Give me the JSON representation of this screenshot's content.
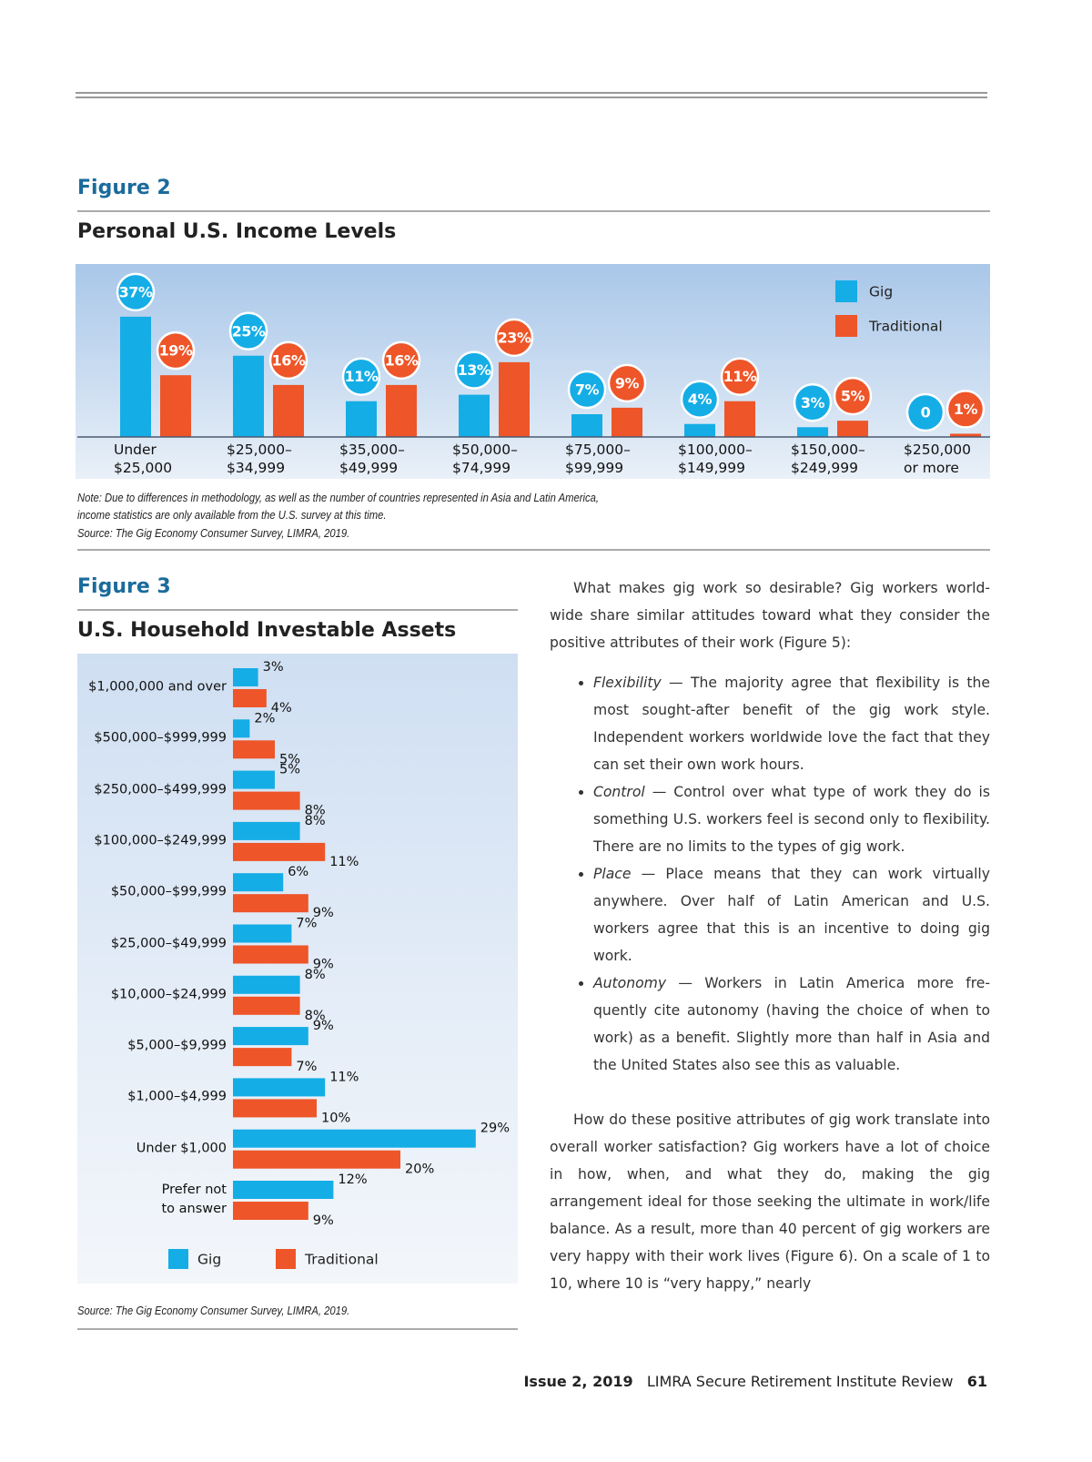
{
  "chart_data": [
    {
      "type": "bar",
      "label": "Figure 2",
      "title": "Personal U.S. Income Levels",
      "categories": [
        "Under\n$25,000",
        "$25,000–\n$34,999",
        "$35,000–\n$49,999",
        "$50,000–\n$74,999",
        "$75,000–\n$99,999",
        "$100,000–\n$149,999",
        "$150,000–\n$249,999",
        "$250,000\nor more"
      ],
      "series": [
        {
          "name": "Gig",
          "color": "#15ade6",
          "values": [
            37,
            25,
            11,
            13,
            7,
            4,
            3,
            0
          ],
          "value_labels": [
            "37%",
            "25%",
            "11%",
            "13%",
            "7%",
            "4%",
            "3%",
            "0"
          ]
        },
        {
          "name": "Traditional",
          "color": "#ee5528",
          "values": [
            19,
            16,
            16,
            23,
            9,
            11,
            5,
            1
          ],
          "value_labels": [
            "19%",
            "16%",
            "16%",
            "23%",
            "9%",
            "11%",
            "5%",
            "1%"
          ]
        }
      ],
      "legend": "top-right",
      "note": [
        "Note: Due to differences in methodology, as well as the number of countries represented in Asia and Latin America,",
        "income statistics are only available from the U.S. survey at this time."
      ],
      "source": "Source: The Gig Economy Consumer Survey, LIMRA, 2019."
    },
    {
      "type": "barh",
      "label": "Figure 3",
      "title": "U.S. Household Investable Assets",
      "categories": [
        "$1,000,000 and over",
        "$500,000–$999,999",
        "$250,000–$499,999",
        "$100,000–$249,999",
        "$50,000–$99,999",
        "$25,000–$49,999",
        "$10,000–$24,999",
        "$5,000–$9,999",
        "$1,000–$4,999",
        "Under $1,000",
        "Prefer not\nto answer"
      ],
      "series": [
        {
          "name": "Gig",
          "color": "#15ade6",
          "values": [
            3,
            2,
            5,
            8,
            6,
            7,
            8,
            9,
            11,
            29,
            12
          ],
          "value_labels": [
            "3%",
            "2%",
            "5%",
            "8%",
            "6%",
            "7%",
            "8%",
            "9%",
            "11%",
            "29%",
            "12%"
          ]
        },
        {
          "name": "Traditional",
          "color": "#ee5528",
          "values": [
            4,
            5,
            8,
            11,
            9,
            9,
            8,
            7,
            10,
            20,
            9
          ],
          "value_labels": [
            "4%",
            "5%",
            "8%",
            "11%",
            "9%",
            "9%",
            "8%",
            "7%",
            "10%",
            "20%",
            "9%"
          ]
        }
      ],
      "legend": "bottom",
      "source": "Source: The Gig Economy Consumer Survey, LIMRA, 2019."
    }
  ],
  "article": {
    "intro": "What makes gig work so desirable? Gig workers world-wide share similar attitudes toward what they consider the positive attributes of their work (Figure 5):",
    "bullets": [
      {
        "term": "Flexibility",
        "text": "— The majority agree that flexibility is the most sought-after benefit of the gig work style. Independent workers worldwide love the fact that they can set their own work hours."
      },
      {
        "term": "Control",
        "text": "— Control over what type of work they do is something U.S. workers feel is second only to flexibility. There are no limits to the types of gig work."
      },
      {
        "term": "Place",
        "text": "— Place means that they can work virtually anywhere. Over half of Latin American and U.S. workers agree that this is an incentive to doing gig work."
      },
      {
        "term": "Autonomy",
        "text": "— Workers in Latin America more fre-quently cite autonomy (having the choice of when to work) as a benefit. Slightly more than half in Asia and the United States also see this as valuable."
      }
    ],
    "closing": "How do these positive attributes of gig work translate into overall worker satisfaction? Gig workers have a lot of choice in how, when, and what they do, making the gig arrangement ideal for those seeking the ultimate in work/life balance. As a result, more than 40 percent of gig workers are very happy with their work lives (Figure 6). On a scale of 1 to 10, where 10 is “very happy,” nearly"
  },
  "footer": {
    "issue": "Issue 2, 2019",
    "publication": "LIMRA Secure Retirement Institute Review",
    "page": "61"
  }
}
